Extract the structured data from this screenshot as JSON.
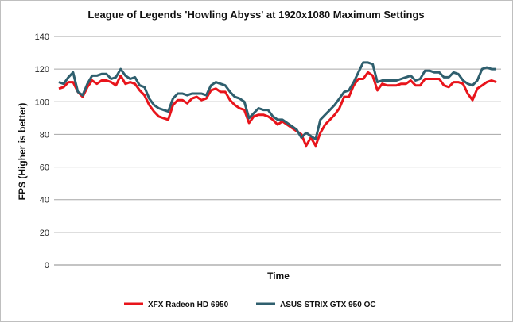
{
  "chart_data": {
    "type": "line",
    "title": "League of Legends 'Howling Abyss' at 1920x1080 Maximum Settings",
    "xlabel": "Time",
    "ylabel": "FPS (Higher is better)",
    "ylim": [
      0,
      140
    ],
    "yticks": [
      "0",
      "20",
      "40",
      "60",
      "80",
      "100",
      "120",
      "140"
    ],
    "grid": "horizontal",
    "legend_position": "bottom",
    "series": [
      {
        "name": "XFX Radeon HD 6950",
        "color": "#e8141b",
        "values": [
          108,
          109,
          112,
          112,
          106,
          103,
          109,
          113,
          111,
          113,
          113,
          112,
          110,
          116,
          111,
          112,
          111,
          107,
          104,
          98,
          94,
          91,
          90,
          89,
          98,
          101,
          101,
          99,
          102,
          103,
          101,
          102,
          107,
          108,
          106,
          106,
          101,
          98,
          96,
          95,
          87,
          91,
          92,
          92,
          91,
          89,
          86,
          88,
          86,
          84,
          82,
          80,
          73,
          78,
          73,
          81,
          86,
          89,
          92,
          96,
          103,
          103,
          110,
          114,
          114,
          118,
          116,
          107,
          111,
          110,
          110,
          110,
          111,
          111,
          113,
          110,
          110,
          114,
          114,
          114,
          114,
          110,
          109,
          112,
          112,
          111,
          105,
          101,
          108,
          110,
          112,
          113,
          112
        ],
        "x": [
          1,
          2,
          3,
          4,
          5,
          6,
          7,
          8,
          9,
          10,
          11,
          12,
          13,
          14,
          15,
          16,
          17,
          18,
          19,
          20,
          21,
          22,
          23,
          24,
          25,
          26,
          27,
          28,
          29,
          30,
          31,
          32,
          33,
          34,
          35,
          36,
          37,
          38,
          39,
          40,
          41,
          42,
          43,
          44,
          45,
          46,
          47,
          48,
          49,
          50,
          51,
          52,
          53,
          54,
          55,
          56,
          57,
          58,
          59,
          60,
          61,
          62,
          63,
          64,
          65,
          66,
          67,
          68,
          69,
          70,
          71,
          72,
          73,
          74,
          75,
          76,
          77,
          78,
          79,
          80,
          81,
          82,
          83,
          84,
          85,
          86,
          87,
          88,
          89,
          90,
          91,
          92,
          93
        ]
      },
      {
        "name": "ASUS STRIX GTX 950 OC",
        "color": "#2f5f6e",
        "values": [
          112,
          111,
          115,
          118,
          106,
          104,
          111,
          116,
          116,
          117,
          117,
          114,
          115,
          120,
          116,
          114,
          115,
          110,
          109,
          102,
          98,
          96,
          95,
          94,
          102,
          105,
          105,
          104,
          105,
          105,
          105,
          104,
          110,
          112,
          111,
          110,
          106,
          103,
          102,
          100,
          90,
          93,
          96,
          95,
          95,
          91,
          89,
          89,
          87,
          85,
          83,
          78,
          81,
          79,
          77,
          89,
          92,
          95,
          98,
          102,
          106,
          107,
          112,
          118,
          124,
          124,
          123,
          112,
          113,
          113,
          113,
          113,
          114,
          115,
          116,
          113,
          114,
          119,
          119,
          118,
          118,
          115,
          115,
          118,
          117,
          113,
          111,
          110,
          113,
          120,
          121,
          120,
          120
        ],
        "x": [
          1,
          2,
          3,
          4,
          5,
          6,
          7,
          8,
          9,
          10,
          11,
          12,
          13,
          14,
          15,
          16,
          17,
          18,
          19,
          20,
          21,
          22,
          23,
          24,
          25,
          26,
          27,
          28,
          29,
          30,
          31,
          32,
          33,
          34,
          35,
          36,
          37,
          38,
          39,
          40,
          41,
          42,
          43,
          44,
          45,
          46,
          47,
          48,
          49,
          50,
          51,
          52,
          53,
          54,
          55,
          56,
          57,
          58,
          59,
          60,
          61,
          62,
          63,
          64,
          65,
          66,
          67,
          68,
          69,
          70,
          71,
          72,
          73,
          74,
          75,
          76,
          77,
          78,
          79,
          80,
          81,
          82,
          83,
          84,
          85,
          86,
          87,
          88,
          89,
          90,
          91,
          92,
          93
        ]
      }
    ]
  }
}
